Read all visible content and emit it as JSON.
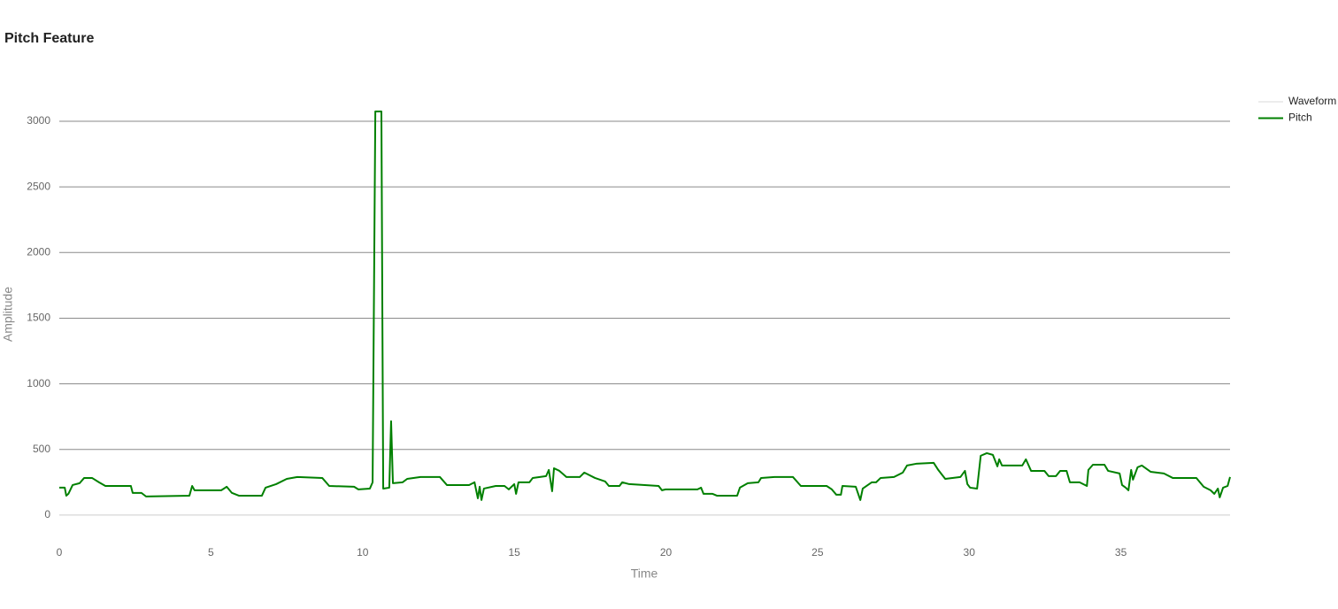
{
  "chart_data": {
    "type": "line",
    "title": "Pitch Feature",
    "xlabel": "Time",
    "ylabel": "Amplitude",
    "xlim": [
      0,
      38.6
    ],
    "ylim": [
      -250,
      3300
    ],
    "xticks": [
      0,
      5,
      10,
      15,
      20,
      25,
      30,
      35
    ],
    "yticks": [
      0,
      500,
      1000,
      1500,
      2000,
      2500,
      3000
    ],
    "grid": true,
    "legend": "right",
    "series": [
      {
        "name": "Waveform",
        "color": "#d9d9d9",
        "x": [],
        "values": []
      },
      {
        "name": "Pitch",
        "color": "#008000",
        "x": [
          0,
          0.18,
          0.23,
          0.3,
          0.44,
          0.67,
          0.82,
          1.08,
          1.31,
          1.52,
          2.36,
          2.42,
          2.71,
          2.86,
          4.29,
          4.38,
          4.46,
          5.34,
          5.52,
          5.69,
          5.92,
          6.68,
          6.8,
          7.15,
          7.5,
          7.85,
          8.67,
          8.9,
          9.72,
          9.86,
          10.24,
          10.33,
          10.42,
          10.62,
          10.68,
          10.88,
          10.94,
          11.0,
          11.32,
          11.47,
          11.91,
          12.55,
          12.78,
          13.51,
          13.69,
          13.8,
          13.86,
          13.92,
          14.0,
          14.39,
          14.68,
          14.82,
          15.0,
          15.06,
          15.14,
          15.5,
          15.61,
          16.05,
          16.14,
          16.25,
          16.31,
          16.49,
          16.72,
          17.16,
          17.31,
          17.66,
          18.0,
          18.12,
          18.47,
          18.56,
          18.79,
          19.76,
          19.87,
          19.99,
          20.1,
          21.04,
          21.16,
          21.24,
          21.54,
          21.68,
          22.35,
          22.44,
          22.7,
          23.05,
          23.14,
          23.58,
          24.19,
          24.45,
          25.3,
          25.47,
          25.62,
          25.77,
          25.82,
          26.26,
          26.41,
          26.49,
          26.79,
          26.93,
          27.08,
          27.52,
          27.81,
          27.95,
          28.25,
          28.83,
          28.98,
          29.21,
          29.71,
          29.86,
          29.94,
          30.03,
          30.26,
          30.38,
          30.58,
          30.78,
          30.93,
          30.99,
          31.08,
          31.75,
          31.87,
          32.04,
          32.48,
          32.62,
          32.86,
          33.0,
          33.21,
          33.32,
          33.64,
          33.88,
          33.93,
          34.08,
          34.46,
          34.58,
          34.96,
          35.04,
          35.16,
          35.25,
          35.34,
          35.4,
          35.55,
          35.69,
          35.98,
          36.42,
          36.71,
          37.49,
          37.73,
          37.96,
          38.08,
          38.2,
          38.26,
          38.37,
          38.52,
          38.6
        ],
        "values": [
          209,
          209,
          148,
          162,
          229,
          243,
          283,
          283,
          250,
          222,
          222,
          169,
          169,
          142,
          148,
          222,
          189,
          189,
          216,
          169,
          148,
          148,
          209,
          236,
          276,
          290,
          283,
          222,
          216,
          196,
          202,
          250,
          3075,
          3075,
          202,
          209,
          715,
          243,
          250,
          276,
          290,
          290,
          229,
          229,
          250,
          128,
          216,
          115,
          202,
          222,
          222,
          196,
          236,
          162,
          250,
          250,
          283,
          297,
          344,
          182,
          357,
          337,
          290,
          290,
          324,
          283,
          256,
          222,
          222,
          250,
          236,
          222,
          189,
          196,
          196,
          196,
          209,
          162,
          162,
          148,
          148,
          209,
          243,
          250,
          283,
          290,
          290,
          222,
          222,
          196,
          155,
          155,
          222,
          216,
          115,
          202,
          250,
          250,
          283,
          290,
          324,
          378,
          391,
          398,
          344,
          276,
          290,
          337,
          236,
          209,
          202,
          452,
          472,
          459,
          371,
          425,
          378,
          378,
          425,
          337,
          337,
          297,
          297,
          337,
          337,
          250,
          250,
          222,
          344,
          384,
          384,
          337,
          317,
          229,
          209,
          189,
          344,
          270,
          364,
          378,
          330,
          317,
          283,
          283,
          216,
          189,
          162,
          202,
          135,
          209,
          222,
          290
        ]
      }
    ]
  }
}
